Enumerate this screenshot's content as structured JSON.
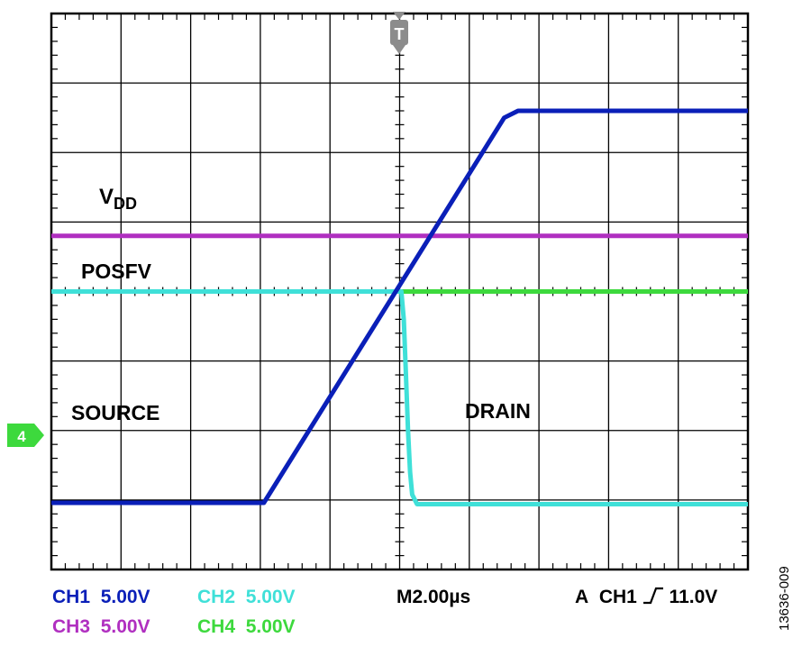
{
  "chart_data": {
    "type": "line",
    "title": "",
    "xlabel": "",
    "ylabel": "",
    "grid": true,
    "grid_divisions": {
      "x": 10,
      "y": 8
    },
    "xlim": [
      -10,
      10
    ],
    "x_unit": "µs",
    "ylim": [
      -20,
      20
    ],
    "y_unit": "V",
    "series": [
      {
        "name": "SOURCE",
        "channel": "CH1",
        "color": "#0a1fb8",
        "points": [
          [
            -10,
            -15.2
          ],
          [
            -3.9,
            -15.2
          ],
          [
            3.0,
            12.5
          ],
          [
            3.4,
            13.0
          ],
          [
            10,
            13.0
          ]
        ]
      },
      {
        "name": "DRAIN",
        "channel": "CH2",
        "color": "#3fe0d8",
        "points": [
          [
            -10,
            0
          ],
          [
            0.05,
            0
          ],
          [
            0.12,
            -2
          ],
          [
            0.18,
            -6
          ],
          [
            0.24,
            -10
          ],
          [
            0.3,
            -13
          ],
          [
            0.36,
            -14.6
          ],
          [
            0.5,
            -15.3
          ],
          [
            10,
            -15.3
          ]
        ]
      },
      {
        "name": "VDD",
        "channel": "CH3",
        "color": "#b02fc0",
        "points": [
          [
            -10,
            4
          ],
          [
            10,
            4
          ]
        ]
      },
      {
        "name": "POSFV",
        "channel": "CH4",
        "color": "#3dd93d",
        "points": [
          [
            -10,
            0
          ],
          [
            10,
            0
          ]
        ]
      }
    ],
    "annotations": {
      "vdd_main": "V",
      "vdd_sub": "DD",
      "posfv": "POSFV",
      "source": "SOURCE",
      "drain": "DRAIN",
      "trigger_marker": "T",
      "ground_marker": "4"
    },
    "footer": {
      "ch1": {
        "label": "CH1",
        "value": "5.00V",
        "color": "#0a1fb8"
      },
      "ch2": {
        "label": "CH2",
        "value": "5.00V",
        "color": "#3fe0d8"
      },
      "ch3": {
        "label": "CH3",
        "value": "5.00V",
        "color": "#b02fc0"
      },
      "ch4": {
        "label": "CH4",
        "value": "5.00V",
        "color": "#3dd93d"
      },
      "timebase": "M2.00µs",
      "trigger_prefix": "A",
      "trigger_channel": "CH1",
      "trigger_level": "11.0V"
    },
    "figure_id": "13636-009"
  }
}
